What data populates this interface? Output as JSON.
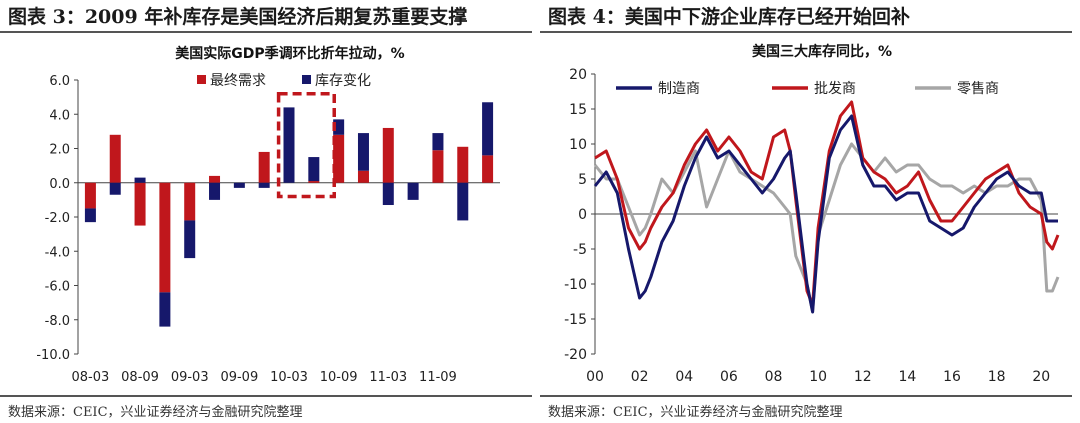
{
  "figures": [
    {
      "heading": "图表 3：2009 年补库存是美国经济后期复苏重要支撑",
      "source": "数据来源：CEIC，兴业证券经济与金融研究院整理"
    },
    {
      "heading": "图表 4：美国中下游企业库存已经开始回补",
      "source": "数据来源：CEIC，兴业证券经济与金融研究院整理"
    }
  ],
  "chart_data": [
    {
      "type": "bar",
      "stacked": true,
      "title": "美国实际GDP季调环比折年拉动，%",
      "xlabel": "",
      "ylabel": "",
      "ylim": [
        -10,
        6
      ],
      "yticks": [
        "6.0",
        "4.0",
        "2.0",
        "0.0",
        "-2.0",
        "-4.0",
        "-6.0",
        "-8.0",
        "-10.0"
      ],
      "xtick_labels": [
        "08-03",
        "08-09",
        "09-03",
        "09-09",
        "10-03",
        "10-09",
        "11-03",
        "11-09"
      ],
      "legend_position": "top-right",
      "colors": {
        "final": "#C0171C",
        "inventory": "#16186B",
        "highlight": "#C0171C"
      },
      "series": [
        {
          "name": "最终需求",
          "values": [
            -1.5,
            2.8,
            -2.5,
            -6.4,
            -2.2,
            0.4,
            0.0,
            1.8,
            0.0,
            0.1,
            2.8,
            0.7,
            3.2,
            0.0,
            1.9,
            2.1,
            1.6
          ]
        },
        {
          "name": "库存变化",
          "values": [
            -0.8,
            -0.7,
            0.3,
            -2.0,
            -2.2,
            -1.0,
            -0.3,
            -0.3,
            4.4,
            1.4,
            0.9,
            2.2,
            -1.3,
            -1.0,
            1.0,
            -2.2,
            3.1
          ]
        }
      ],
      "highlight_range": [
        8,
        9
      ]
    },
    {
      "type": "line",
      "title": "美国三大库存同比，%",
      "xlabel": "",
      "ylabel": "",
      "xlim": [
        2000,
        2020.75
      ],
      "ylim": [
        -20,
        20
      ],
      "xticks": [
        "00",
        "02",
        "04",
        "06",
        "08",
        "10",
        "12",
        "14",
        "16",
        "18",
        "20"
      ],
      "yticks": [
        "20",
        "15",
        "10",
        "5",
        "0",
        "-5",
        "-10",
        "-15",
        "-20"
      ],
      "legend_position": "top",
      "series": [
        {
          "name": "制造商",
          "color": "#16186B",
          "x": [
            2000,
            2000.5,
            2001,
            2001.5,
            2002,
            2002.25,
            2002.5,
            2003,
            2003.5,
            2004,
            2004.5,
            2005,
            2005.5,
            2006,
            2006.5,
            2007,
            2007.5,
            2008,
            2008.5,
            2008.75,
            2009,
            2009.5,
            2009.75,
            2010,
            2010.5,
            2011,
            2011.5,
            2012,
            2012.5,
            2013,
            2013.5,
            2014,
            2014.5,
            2015,
            2015.5,
            2016,
            2016.5,
            2017,
            2017.5,
            2018,
            2018.5,
            2019,
            2019.5,
            2020,
            2020.25,
            2020.5,
            2020.75
          ],
          "y": [
            4,
            6,
            3,
            -5,
            -12,
            -11,
            -9,
            -4,
            -1,
            4,
            8,
            11,
            8,
            9,
            7,
            5,
            3,
            5,
            8,
            9,
            3,
            -10,
            -14,
            -4,
            8,
            12,
            14,
            7,
            4,
            4,
            2,
            3,
            3,
            -1,
            -2,
            -3,
            -2,
            1,
            3,
            5,
            6,
            4,
            3,
            3,
            -1,
            -1,
            -1
          ]
        },
        {
          "name": "批发商",
          "color": "#C0171C",
          "x": [
            2000,
            2000.5,
            2001,
            2001.5,
            2002,
            2002.25,
            2002.5,
            2003,
            2003.5,
            2004,
            2004.5,
            2005,
            2005.5,
            2006,
            2006.5,
            2007,
            2007.5,
            2008,
            2008.5,
            2008.75,
            2009,
            2009.5,
            2009.75,
            2010,
            2010.5,
            2011,
            2011.5,
            2012,
            2012.5,
            2013,
            2013.5,
            2014,
            2014.5,
            2015,
            2015.5,
            2016,
            2016.5,
            2017,
            2017.5,
            2018,
            2018.5,
            2019,
            2019.5,
            2020,
            2020.25,
            2020.5,
            2020.75
          ],
          "y": [
            8,
            9,
            5,
            -2,
            -5,
            -4,
            -2,
            1,
            3,
            7,
            10,
            12,
            9,
            11,
            9,
            6,
            5,
            11,
            12,
            9,
            2,
            -11,
            -13,
            -2,
            9,
            14,
            16,
            8,
            6,
            5,
            3,
            4,
            6,
            2,
            -1,
            -1,
            1,
            3,
            5,
            6,
            7,
            3,
            1,
            0,
            -4,
            -5,
            -3
          ]
        },
        {
          "name": "零售商",
          "color": "#A6A6A6",
          "x": [
            2000,
            2000.5,
            2001,
            2001.5,
            2002,
            2002.25,
            2002.5,
            2003,
            2003.5,
            2004,
            2004.5,
            2005,
            2005.5,
            2006,
            2006.5,
            2007,
            2007.5,
            2008,
            2008.5,
            2008.75,
            2009,
            2009.5,
            2009.75,
            2010,
            2010.5,
            2011,
            2011.5,
            2012,
            2012.5,
            2013,
            2013.5,
            2014,
            2014.5,
            2015,
            2015.5,
            2016,
            2016.5,
            2017,
            2017.5,
            2018,
            2018.5,
            2019,
            2019.5,
            2020,
            2020.25,
            2020.5,
            2020.75
          ],
          "y": [
            7,
            5,
            5,
            1,
            -3,
            -2,
            0,
            5,
            3,
            6,
            9,
            1,
            5,
            9,
            6,
            5,
            4,
            3,
            1,
            0,
            -6,
            -10,
            -14,
            -3,
            2,
            7,
            10,
            8,
            6,
            8,
            6,
            7,
            7,
            5,
            4,
            4,
            3,
            4,
            3,
            4,
            4,
            5,
            5,
            2,
            -11,
            -11,
            -9
          ]
        }
      ]
    }
  ]
}
